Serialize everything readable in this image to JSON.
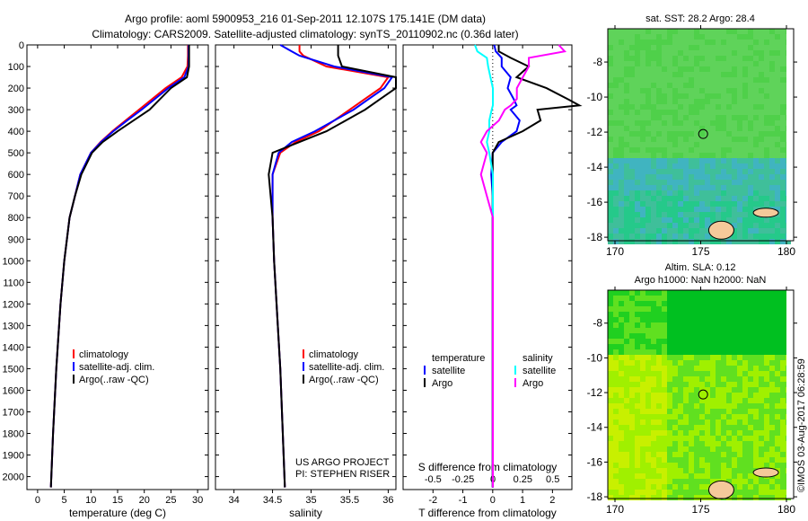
{
  "title_line1": "Argo profile: aoml 5900953_216 01-Sep-2011 12.107S 175.141E (DM data)",
  "title_line2": "Climatology: CARS2009. Satellite-adjusted climatology: synTS_20110902.nc (0.36d later)",
  "colors": {
    "climatology": "#ff0000",
    "satellite": "#0000ff",
    "argo": "#000000",
    "sal_satellite": "#00ffff",
    "sal_argo": "#ff00ff",
    "land": "#f5c99a"
  },
  "legend": {
    "climatology": "climatology",
    "satellite_adj": "satellite-adj. clim.",
    "argo": "Argo(..raw -QC)"
  },
  "diff_legend": {
    "temperature": "temperature",
    "salinity": "salinity",
    "satellite": "satellite",
    "argo": "Argo"
  },
  "project": {
    "line1": "US ARGO PROJECT",
    "line2": "PI: STEPHEN RISER"
  },
  "map_top": {
    "title": "sat. SST: 28.2  Argo: 28.4"
  },
  "map_bottom": {
    "title1": "Altim. SLA: 0.12",
    "title2": "Argo h1000: NaN h2000: NaN"
  },
  "copyright": "©IMOS 03-Aug-2017 06:28:59",
  "chart_data": [
    {
      "type": "line",
      "xlabel": "temperature (deg C)",
      "ylabel": "",
      "xlim": [
        -2,
        32
      ],
      "ylim": [
        2060,
        0
      ],
      "xticks": [
        "0",
        "5",
        "10",
        "15",
        "20",
        "25",
        "30"
      ],
      "xtick_values": [
        0,
        5,
        10,
        15,
        20,
        25,
        30
      ],
      "yticks": [
        "0",
        "100",
        "200",
        "300",
        "400",
        "500",
        "600",
        "700",
        "800",
        "900",
        "1000",
        "1100",
        "1200",
        "1300",
        "1400",
        "1500",
        "1600",
        "1700",
        "1800",
        "1900",
        "2000"
      ],
      "depth": [
        0,
        50,
        100,
        150,
        200,
        250,
        300,
        350,
        400,
        450,
        500,
        600,
        700,
        800,
        1000,
        1200,
        1500,
        1800,
        2050
      ],
      "series": [
        {
          "name": "climatology",
          "color": "#ff0000",
          "values": [
            28.2,
            28.2,
            28.1,
            27,
            24,
            21.5,
            19,
            16.5,
            14,
            11.8,
            10,
            8,
            7,
            6,
            5,
            4.3,
            3.5,
            2.9,
            2.5
          ]
        },
        {
          "name": "satellite-adj. clim.",
          "color": "#0000ff",
          "values": [
            28.3,
            28.3,
            28.3,
            27.5,
            24.5,
            22,
            19.5,
            16.8,
            14.2,
            11.9,
            10,
            8,
            7,
            6,
            5,
            4.3,
            3.5,
            2.9,
            2.5
          ]
        },
        {
          "name": "Argo",
          "color": "#000000",
          "values": [
            28.4,
            28.4,
            28.4,
            28,
            25,
            23,
            21,
            18,
            15,
            12.2,
            10.2,
            8.2,
            7,
            6,
            5,
            4.3,
            3.5,
            2.9,
            2.5
          ]
        }
      ]
    },
    {
      "type": "line",
      "xlabel": "salinity",
      "xlim": [
        33.76,
        36.1
      ],
      "ylim": [
        2060,
        0
      ],
      "xticks": [
        "34",
        "34.5",
        "35",
        "35.5",
        "36"
      ],
      "xtick_values": [
        34,
        34.5,
        35,
        35.5,
        36
      ],
      "depth": [
        0,
        30,
        50,
        100,
        150,
        200,
        250,
        300,
        350,
        400,
        450,
        500,
        600,
        800,
        1000,
        1500,
        2050
      ],
      "series": [
        {
          "name": "climatology",
          "color": "#ff0000",
          "values": [
            34.85,
            34.85,
            34.9,
            35.2,
            36.0,
            35.9,
            35.7,
            35.5,
            35.3,
            35.1,
            34.8,
            34.6,
            34.5,
            34.5,
            34.52,
            34.6,
            34.66
          ]
        },
        {
          "name": "satellite-adj. clim.",
          "color": "#0000ff",
          "values": [
            34.6,
            34.75,
            34.85,
            35.3,
            36.05,
            35.95,
            35.75,
            35.55,
            35.3,
            35.05,
            34.75,
            34.58,
            34.5,
            34.5,
            34.52,
            34.6,
            34.66
          ]
        },
        {
          "name": "Argo",
          "color": "#000000",
          "values": [
            35.35,
            35.35,
            35.35,
            35.4,
            36.1,
            36.1,
            35.9,
            35.7,
            35.45,
            35.2,
            34.85,
            34.5,
            34.45,
            34.5,
            34.52,
            34.6,
            34.66
          ]
        }
      ]
    },
    {
      "type": "line",
      "xlabel": "T difference from climatology",
      "x2label": "S difference from climatology",
      "xlim": [
        -3,
        2.65
      ],
      "ylim": [
        2060,
        0
      ],
      "xticks": [
        "-2",
        "-1",
        "0",
        "1",
        "2"
      ],
      "xtick_values": [
        -2,
        -1,
        0,
        1,
        2
      ],
      "x2ticks": [
        "-0.5",
        "-0.25",
        "0",
        "0.25",
        "0.5"
      ],
      "x2tick_values": [
        -0.5,
        -0.25,
        0,
        0.25,
        0.5
      ],
      "depth": [
        0,
        30,
        60,
        100,
        150,
        200,
        250,
        280,
        300,
        350,
        400,
        450,
        500,
        600,
        700,
        800,
        1000,
        2050
      ],
      "series": [
        {
          "name": "temperature satellite",
          "axis": "T",
          "color": "#0000ff",
          "values": [
            0.05,
            0.1,
            0.3,
            0.3,
            0.6,
            0.5,
            0.7,
            0.8,
            0.6,
            0.9,
            0.8,
            0.3,
            0,
            -0.05,
            0,
            0,
            0,
            0
          ]
        },
        {
          "name": "temperature Argo",
          "axis": "T",
          "color": "#000000",
          "values": [
            0.2,
            0.2,
            0.6,
            1.2,
            0.8,
            1.8,
            2.5,
            2.9,
            1.5,
            1.6,
            1.0,
            0.2,
            0,
            0,
            0,
            0,
            0,
            0
          ]
        },
        {
          "name": "salinity satellite",
          "axis": "S",
          "color": "#00ffff",
          "values": [
            -0.15,
            -0.13,
            -0.05,
            -0.04,
            -0.02,
            0,
            0,
            0,
            -0.01,
            -0.03,
            -0.03,
            -0.05,
            -0.03,
            0,
            0,
            0,
            0,
            0
          ]
        },
        {
          "name": "salinity Argo",
          "axis": "S",
          "color": "#ff00ff",
          "values": [
            0.55,
            0.6,
            0.3,
            0.3,
            0.25,
            0.2,
            0.2,
            0.15,
            0.1,
            0.05,
            -0.05,
            -0.1,
            -0.05,
            -0.1,
            -0.05,
            0,
            0,
            0
          ]
        }
      ]
    }
  ],
  "maps": [
    {
      "lon_ticks": [
        "170",
        "175",
        "180"
      ],
      "lat_ticks": [
        "-8",
        "-10",
        "-12",
        "-14",
        "-16",
        "-18"
      ],
      "argo_lon": 175.141,
      "argo_lat": -12.107,
      "palette": [
        "#2fd86a",
        "#25c98a",
        "#3fbf9a",
        "#40b4c0",
        "#5fd35a",
        "#4fd04a"
      ]
    },
    {
      "lon_ticks": [
        "170",
        "175",
        "180"
      ],
      "lat_ticks": [
        "-8",
        "-10",
        "-12",
        "-14",
        "-16",
        "-18"
      ],
      "argo_lon": 175.141,
      "argo_lat": -12.107,
      "palette": [
        "#00c020",
        "#20d020",
        "#60e020",
        "#a0f000",
        "#c8f000",
        "#e0f000"
      ]
    }
  ]
}
